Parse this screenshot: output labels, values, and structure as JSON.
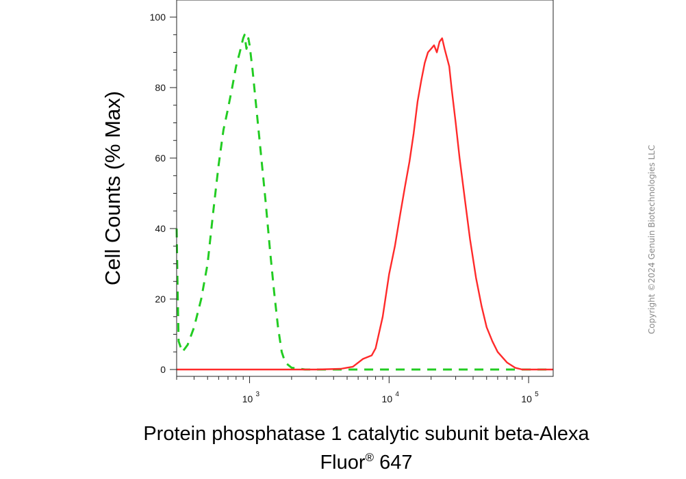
{
  "chart_data": {
    "type": "area",
    "title": "",
    "xlabel_line1": "Protein phosphatase 1 catalytic subunit beta-Alexa",
    "xlabel_line2_pre": "Fluor",
    "xlabel_line2_sup": "®",
    "xlabel_line2_post": " 647",
    "ylabel": "Cell Counts (% Max)",
    "x_scale": "log",
    "xlim": [
      300,
      150000
    ],
    "ylim": [
      0,
      100
    ],
    "y_ticks": [
      "0",
      "20",
      "40",
      "60",
      "80",
      "100"
    ],
    "x_ticks": [
      {
        "base": "10",
        "exp": "3",
        "value": 1000
      },
      {
        "base": "10",
        "exp": "4",
        "value": 10000
      },
      {
        "base": "10",
        "exp": "5",
        "value": 100000
      }
    ],
    "grid": false,
    "series": [
      {
        "color": "#22cc22",
        "dash": true,
        "points": [
          [
            300,
            40
          ],
          [
            305,
            22
          ],
          [
            310,
            8
          ],
          [
            330,
            5
          ],
          [
            360,
            7
          ],
          [
            400,
            12
          ],
          [
            450,
            20
          ],
          [
            500,
            30
          ],
          [
            550,
            45
          ],
          [
            600,
            58
          ],
          [
            650,
            68
          ],
          [
            700,
            74
          ],
          [
            750,
            80
          ],
          [
            800,
            86
          ],
          [
            850,
            90
          ],
          [
            900,
            94
          ],
          [
            920,
            95
          ],
          [
            950,
            91
          ],
          [
            980,
            94
          ],
          [
            1000,
            92
          ],
          [
            1050,
            85
          ],
          [
            1100,
            77
          ],
          [
            1200,
            62
          ],
          [
            1300,
            48
          ],
          [
            1400,
            34
          ],
          [
            1500,
            22
          ],
          [
            1600,
            12
          ],
          [
            1700,
            5
          ],
          [
            1800,
            2
          ],
          [
            2000,
            0.5
          ],
          [
            2500,
            0
          ],
          [
            150000,
            0
          ]
        ]
      },
      {
        "color": "#ff2a2a",
        "dash": false,
        "points": [
          [
            300,
            0
          ],
          [
            3000,
            0
          ],
          [
            4500,
            0.2
          ],
          [
            5500,
            0.8
          ],
          [
            6500,
            3
          ],
          [
            7500,
            4
          ],
          [
            8000,
            6
          ],
          [
            9000,
            15
          ],
          [
            10000,
            27
          ],
          [
            11000,
            35
          ],
          [
            12000,
            44
          ],
          [
            13000,
            52
          ],
          [
            14000,
            59
          ],
          [
            15000,
            67
          ],
          [
            16000,
            76
          ],
          [
            17000,
            82
          ],
          [
            18000,
            87
          ],
          [
            19000,
            90
          ],
          [
            20000,
            91
          ],
          [
            21000,
            92
          ],
          [
            22000,
            90
          ],
          [
            23000,
            93
          ],
          [
            24000,
            94
          ],
          [
            25000,
            91
          ],
          [
            27000,
            86
          ],
          [
            28000,
            80
          ],
          [
            30000,
            70
          ],
          [
            32000,
            60
          ],
          [
            35000,
            48
          ],
          [
            38000,
            37
          ],
          [
            42000,
            26
          ],
          [
            46000,
            18
          ],
          [
            50000,
            12
          ],
          [
            55000,
            8
          ],
          [
            60000,
            5
          ],
          [
            70000,
            2
          ],
          [
            80000,
            0.5
          ],
          [
            90000,
            0
          ],
          [
            150000,
            0
          ]
        ]
      }
    ]
  },
  "watermark": "Copyright ©2024 Genuin Biotechnologies LLC"
}
